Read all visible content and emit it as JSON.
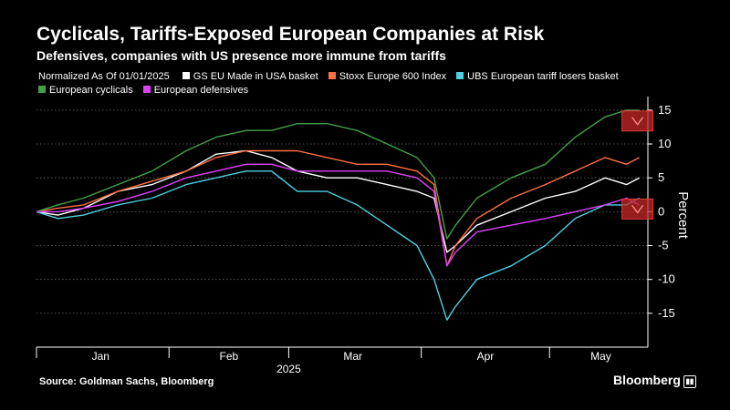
{
  "title": "Cyclicals, Tariffs-Exposed European Companies at Risk",
  "subtitle": "Defensives, companies with US presence more immune from tariffs",
  "source": "Source: Goldman Sachs, Bloomberg",
  "brand": "Bloomberg",
  "brand_icon": "chart-box-icon",
  "chart_data": {
    "type": "line",
    "note": "Normalized As Of 01/01/2025",
    "ylabel": "Percent",
    "ylim": [
      -20,
      17
    ],
    "yticks": [
      -15,
      -10,
      -5,
      0,
      5,
      10,
      15
    ],
    "ytick_labels": [
      "-15",
      "-10",
      "-5",
      "0",
      "5",
      "10",
      "15"
    ],
    "xlim": [
      "2025-01-01",
      "2025-05-24"
    ],
    "xticks": [
      {
        "date": "2025-01-01",
        "label": ""
      },
      {
        "date": "2025-02-01",
        "label": ""
      },
      {
        "date": "2025-03-01",
        "label": ""
      },
      {
        "date": "2025-04-01",
        "label": ""
      },
      {
        "date": "2025-05-01",
        "label": ""
      }
    ],
    "month_labels": [
      {
        "date": "2025-01-16",
        "label": "Jan"
      },
      {
        "date": "2025-02-15",
        "label": "Feb"
      },
      {
        "date": "2025-03-16",
        "label": "Mar"
      },
      {
        "date": "2025-04-16",
        "label": "Apr"
      },
      {
        "date": "2025-05-13",
        "label": "May"
      }
    ],
    "year_label": {
      "date": "2025-03-01",
      "label": "2025"
    },
    "grid": true,
    "legend_position": "top-left",
    "series": [
      {
        "name": "GS EU Made in USA basket",
        "color": "#ffffff",
        "x": [
          "2025-01-01",
          "2025-01-06",
          "2025-01-12",
          "2025-01-20",
          "2025-01-28",
          "2025-02-05",
          "2025-02-12",
          "2025-02-19",
          "2025-02-25",
          "2025-03-03",
          "2025-03-10",
          "2025-03-17",
          "2025-03-24",
          "2025-03-31",
          "2025-04-04",
          "2025-04-07",
          "2025-04-09",
          "2025-04-14",
          "2025-04-22",
          "2025-04-30",
          "2025-05-07",
          "2025-05-14",
          "2025-05-19",
          "2025-05-22"
        ],
        "y": [
          0,
          -0.5,
          0.5,
          3,
          4,
          6,
          8.5,
          9,
          8,
          6,
          5,
          5,
          4,
          3,
          2,
          -6,
          -5,
          -2,
          0,
          2,
          3,
          5,
          4,
          5
        ]
      },
      {
        "name": "Stoxx Europe 600 Index",
        "color": "#ff7043",
        "x": [
          "2025-01-01",
          "2025-01-06",
          "2025-01-12",
          "2025-01-20",
          "2025-01-28",
          "2025-02-05",
          "2025-02-12",
          "2025-02-19",
          "2025-02-25",
          "2025-03-03",
          "2025-03-10",
          "2025-03-17",
          "2025-03-24",
          "2025-03-31",
          "2025-04-04",
          "2025-04-07",
          "2025-04-09",
          "2025-04-14",
          "2025-04-22",
          "2025-04-30",
          "2025-05-07",
          "2025-05-14",
          "2025-05-19",
          "2025-05-22"
        ],
        "y": [
          0,
          0.5,
          1,
          3,
          4.5,
          6,
          8,
          9,
          9,
          9,
          8,
          7,
          7,
          6,
          4,
          -8,
          -5,
          -1,
          2,
          4,
          6,
          8,
          7,
          8
        ]
      },
      {
        "name": "UBS European tariff losers basket",
        "color": "#4dd0e1",
        "x": [
          "2025-01-01",
          "2025-01-06",
          "2025-01-12",
          "2025-01-20",
          "2025-01-28",
          "2025-02-05",
          "2025-02-12",
          "2025-02-19",
          "2025-02-25",
          "2025-03-03",
          "2025-03-10",
          "2025-03-17",
          "2025-03-24",
          "2025-03-31",
          "2025-04-04",
          "2025-04-07",
          "2025-04-09",
          "2025-04-14",
          "2025-04-22",
          "2025-04-30",
          "2025-05-07",
          "2025-05-14",
          "2025-05-19",
          "2025-05-22"
        ],
        "y": [
          0,
          -1,
          -0.5,
          1,
          2,
          4,
          5,
          6,
          6,
          3,
          3,
          1,
          -2,
          -5,
          -10,
          -16,
          -14,
          -10,
          -8,
          -5,
          -1,
          1,
          1,
          2
        ]
      },
      {
        "name": "European cyclicals",
        "color": "#43a047",
        "x": [
          "2025-01-01",
          "2025-01-06",
          "2025-01-12",
          "2025-01-20",
          "2025-01-28",
          "2025-02-05",
          "2025-02-12",
          "2025-02-19",
          "2025-02-25",
          "2025-03-03",
          "2025-03-10",
          "2025-03-17",
          "2025-03-24",
          "2025-03-31",
          "2025-04-04",
          "2025-04-07",
          "2025-04-09",
          "2025-04-14",
          "2025-04-22",
          "2025-04-30",
          "2025-05-07",
          "2025-05-14",
          "2025-05-19",
          "2025-05-22"
        ],
        "y": [
          0,
          1,
          2,
          4,
          6,
          9,
          11,
          12,
          12,
          13,
          13,
          12,
          10,
          8,
          5,
          -4,
          -2,
          2,
          5,
          7,
          11,
          14,
          15,
          15
        ]
      },
      {
        "name": "European defensives",
        "color": "#e040fb",
        "x": [
          "2025-01-01",
          "2025-01-06",
          "2025-01-12",
          "2025-01-20",
          "2025-01-28",
          "2025-02-05",
          "2025-02-12",
          "2025-02-19",
          "2025-02-25",
          "2025-03-03",
          "2025-03-10",
          "2025-03-17",
          "2025-03-24",
          "2025-03-31",
          "2025-04-04",
          "2025-04-07",
          "2025-04-09",
          "2025-04-14",
          "2025-04-22",
          "2025-04-30",
          "2025-05-07",
          "2025-05-14",
          "2025-05-19",
          "2025-05-22"
        ],
        "y": [
          0,
          0,
          0.5,
          1.5,
          3,
          5,
          6,
          7,
          7,
          6,
          6,
          6,
          6,
          5,
          3,
          -8,
          -6,
          -3,
          -2,
          -1,
          0,
          1,
          2,
          1
        ]
      }
    ],
    "annotations": [
      {
        "series_index": 3,
        "y": 13.4,
        "marker": "down-arrow-box",
        "color": "#c62828"
      },
      {
        "series_index": 4,
        "y": 0.4,
        "marker": "down-arrow-box",
        "color": "#c62828"
      }
    ]
  }
}
